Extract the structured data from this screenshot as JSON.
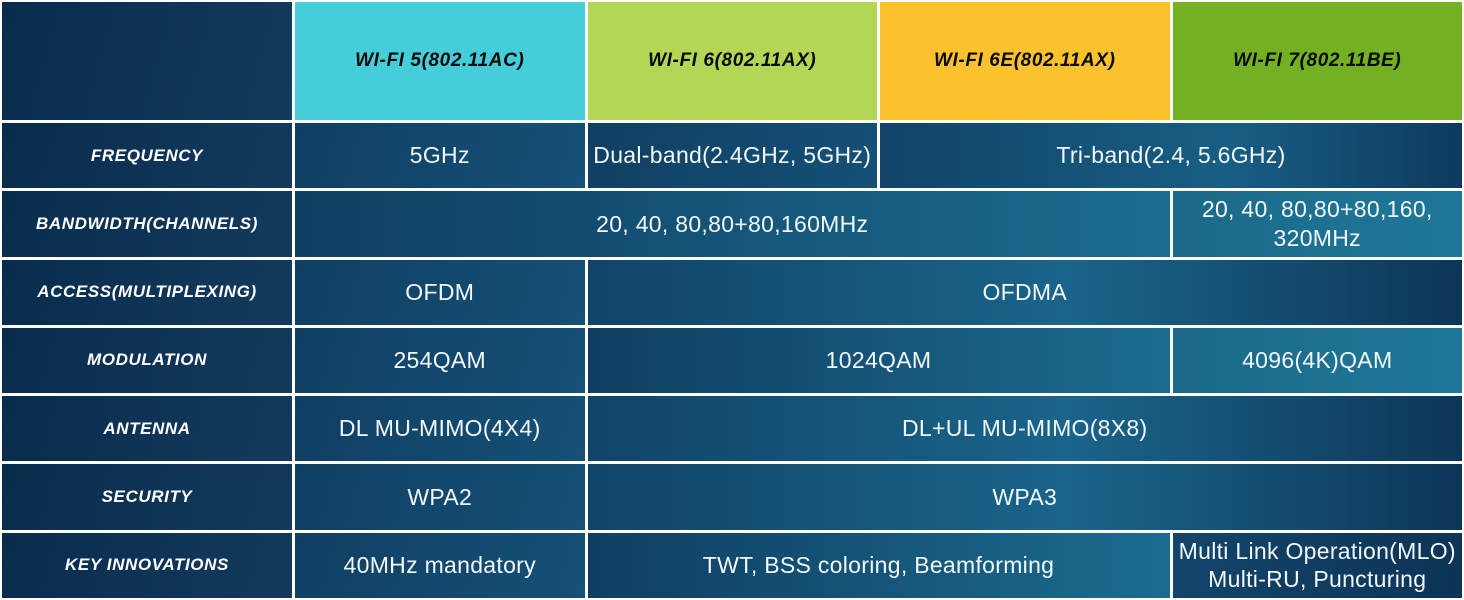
{
  "title": "Wi-Fi standards comparison table",
  "colors": {
    "wifi5_header": "#45cdda",
    "wifi6_header": "#b3d755",
    "wifi6e_header": "#fcc22d",
    "wifi7_header": "#74b122",
    "label_navy": "#0d3457",
    "value_teal": "#1b6c90",
    "grid_line": "#ffffff"
  },
  "columns": [
    {
      "label": "WI-FI 5(802.11AC)",
      "color": "#45cdda"
    },
    {
      "label": "WI-FI 6(802.11AX)",
      "color": "#b3d755"
    },
    {
      "label": "WI-FI 6E(802.11AX)",
      "color": "#fcc22d"
    },
    {
      "label": "WI-FI 7(802.11BE)",
      "color": "#74b122"
    }
  ],
  "rows": [
    {
      "label": "FREQUENCY",
      "cells": [
        {
          "text": "5GHz",
          "span": 1,
          "variant": "bg-normal"
        },
        {
          "text": "Dual-band(2.4GHz, 5GHz)",
          "span": 1,
          "variant": "bg-normal"
        },
        {
          "text": "Tri-band(2.4, 5.6GHz)",
          "span": 2,
          "variant": "bg-span2-fade"
        }
      ]
    },
    {
      "label": "BANDWIDTH(CHANNELS)",
      "cells": [
        {
          "text": "20, 40, 80,80+80,160MHz",
          "span": 3,
          "variant": "bg-wide-light"
        },
        {
          "text": "20, 40, 80,80+80,160,\n320MHz",
          "span": 1,
          "variant": "bg-light"
        }
      ]
    },
    {
      "label": "ACCESS(MULTIPLEXING)",
      "cells": [
        {
          "text": "OFDM",
          "span": 1,
          "variant": "bg-normal"
        },
        {
          "text": "OFDMA",
          "span": 3,
          "variant": "bg-wide-fade"
        }
      ]
    },
    {
      "label": "MODULATION",
      "cells": [
        {
          "text": "254QAM",
          "span": 1,
          "variant": "bg-normal"
        },
        {
          "text": "1024QAM",
          "span": 2,
          "variant": "bg-wide-light"
        },
        {
          "text": "4096(4K)QAM",
          "span": 1,
          "variant": "bg-light"
        }
      ]
    },
    {
      "label": "ANTENNA",
      "cells": [
        {
          "text": "DL MU-MIMO(4X4)",
          "span": 1,
          "variant": "bg-normal"
        },
        {
          "text": "DL+UL MU-MIMO(8X8)",
          "span": 3,
          "variant": "bg-wide-fade"
        }
      ]
    },
    {
      "label": "SECURITY",
      "cells": [
        {
          "text": "WPA2",
          "span": 1,
          "variant": "bg-normal"
        },
        {
          "text": "WPA3",
          "span": 3,
          "variant": "bg-wide-fade"
        }
      ]
    },
    {
      "label": "KEY INNOVATIONS",
      "cells": [
        {
          "text": "40MHz mandatory",
          "span": 1,
          "variant": "bg-normal"
        },
        {
          "text": "TWT, BSS coloring, Beamforming",
          "span": 2,
          "variant": "bg-wide-light"
        },
        {
          "text": "Multi Link Operation(MLO)\nMulti-RU, Puncturing",
          "span": 1,
          "variant": "bg-dark"
        }
      ]
    }
  ],
  "chart_data": {
    "type": "table",
    "title": "Wi-Fi 5 vs Wi-Fi 6 vs Wi-Fi 6E vs Wi-Fi 7",
    "column_headers": [
      "",
      "WI-FI 5(802.11AC)",
      "WI-FI 6(802.11AX)",
      "WI-FI 6E(802.11AX)",
      "WI-FI 7(802.11BE)"
    ],
    "row_records": [
      {
        "feature": "FREQUENCY",
        "wifi5": "5GHz",
        "wifi6": "Dual-band(2.4GHz, 5GHz)",
        "wifi6e": "Tri-band(2.4, 5.6GHz)",
        "wifi7": "Tri-band(2.4, 5.6GHz)"
      },
      {
        "feature": "BANDWIDTH(CHANNELS)",
        "wifi5": "20, 40, 80,80+80,160MHz",
        "wifi6": "20, 40, 80,80+80,160MHz",
        "wifi6e": "20, 40, 80,80+80,160MHz",
        "wifi7": "20, 40, 80,80+80,160, 320MHz"
      },
      {
        "feature": "ACCESS(MULTIPLEXING)",
        "wifi5": "OFDM",
        "wifi6": "OFDMA",
        "wifi6e": "OFDMA",
        "wifi7": "OFDMA"
      },
      {
        "feature": "MODULATION",
        "wifi5": "254QAM",
        "wifi6": "1024QAM",
        "wifi6e": "1024QAM",
        "wifi7": "4096(4K)QAM"
      },
      {
        "feature": "ANTENNA",
        "wifi5": "DL MU-MIMO(4X4)",
        "wifi6": "DL+UL MU-MIMO(8X8)",
        "wifi6e": "DL+UL MU-MIMO(8X8)",
        "wifi7": "DL+UL MU-MIMO(8X8)"
      },
      {
        "feature": "SECURITY",
        "wifi5": "WPA2",
        "wifi6": "WPA3",
        "wifi6e": "WPA3",
        "wifi7": "WPA3"
      },
      {
        "feature": "KEY INNOVATIONS",
        "wifi5": "40MHz mandatory",
        "wifi6": "TWT, BSS coloring, Beamforming",
        "wifi6e": "TWT, BSS coloring, Beamforming",
        "wifi7": "Multi Link Operation(MLO) Multi-RU, Puncturing"
      }
    ]
  }
}
